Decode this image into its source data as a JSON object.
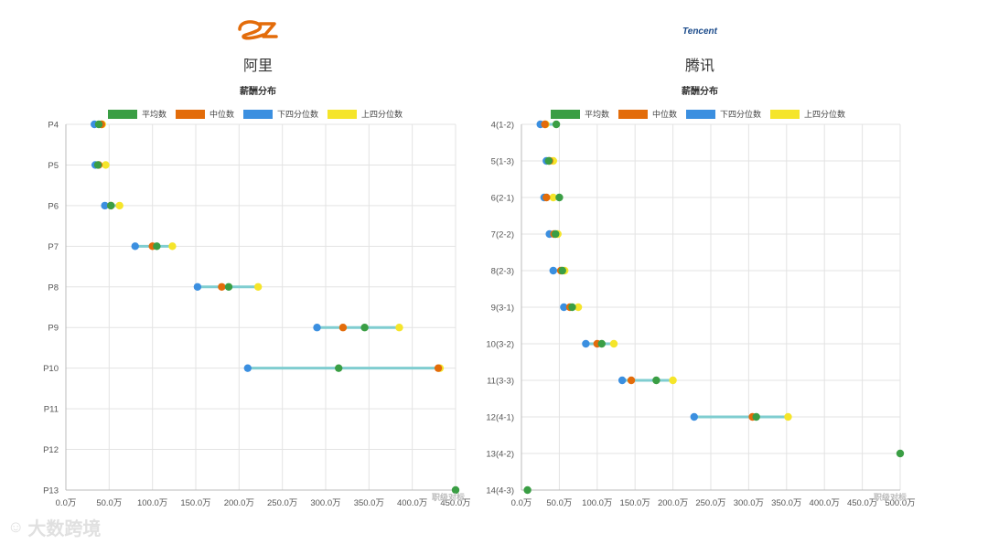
{
  "brand": {
    "text": "大数跨境"
  },
  "watermark": {
    "text": "职级对标"
  },
  "legend": {
    "labels": [
      "平均数",
      "中位数",
      "下四分位数",
      "上四分位数"
    ],
    "colors": [
      "#3a9e44",
      "#e36c0a",
      "#3b8fe0",
      "#f5e52a"
    ]
  },
  "line_color": "#7fcdd0",
  "chart_data": [
    {
      "type": "dumbbell",
      "company": "阿里",
      "logo_icon": "alibaba-logo",
      "title": "薪酬分布",
      "categories": [
        "P4",
        "P5",
        "P6",
        "P7",
        "P8",
        "P9",
        "P10",
        "P11",
        "P12",
        "P13"
      ],
      "x_ticks": [
        "0.0万",
        "50.0万",
        "100.0万",
        "150.0万",
        "200.0万",
        "250.0万",
        "300.0万",
        "350.0万",
        "400.0万",
        "450.0万"
      ],
      "xlim": [
        0,
        450
      ],
      "series": [
        {
          "name": "平均数",
          "values": [
            38,
            37,
            52,
            105,
            188,
            345,
            315,
            null,
            null,
            450
          ]
        },
        {
          "name": "中位数",
          "values": [
            41,
            38,
            52,
            100,
            180,
            320,
            430,
            null,
            null,
            null
          ]
        },
        {
          "name": "下四分位数",
          "values": [
            33,
            34,
            45,
            80,
            152,
            290,
            210,
            null,
            null,
            null
          ]
        },
        {
          "name": "上四分位数",
          "values": [
            42,
            46,
            62,
            123,
            222,
            385,
            432,
            null,
            null,
            null
          ]
        }
      ]
    },
    {
      "type": "dumbbell",
      "company": "腾讯",
      "logo_icon": "tencent-logo",
      "logo_text": "Tencent",
      "title": "薪酬分布",
      "categories": [
        "4(1-2)",
        "5(1-3)",
        "6(2-1)",
        "7(2-2)",
        "8(2-3)",
        "9(3-1)",
        "10(3-2)",
        "11(3-3)",
        "12(4-1)",
        "13(4-2)",
        "14(4-3)"
      ],
      "x_ticks": [
        "0.0万",
        "50.0万",
        "100.0万",
        "150.0万",
        "200.0万",
        "250.0万",
        "300.0万",
        "350.0万",
        "400.0万",
        "450.0万",
        "500.0万"
      ],
      "xlim": [
        0,
        500
      ],
      "series": [
        {
          "name": "平均数",
          "values": [
            46,
            36,
            50,
            45,
            54,
            67,
            106,
            178,
            310,
            500,
            8
          ]
        },
        {
          "name": "中位数",
          "values": [
            31,
            37,
            33,
            43,
            52,
            64,
            100,
            145,
            305,
            null,
            null
          ]
        },
        {
          "name": "下四分位数",
          "values": [
            25,
            33,
            30,
            37,
            42,
            56,
            85,
            133,
            228,
            null,
            null
          ]
        },
        {
          "name": "上四分位数",
          "values": [
            32,
            42,
            42,
            48,
            57,
            75,
            122,
            200,
            352,
            null,
            null
          ]
        }
      ]
    }
  ]
}
